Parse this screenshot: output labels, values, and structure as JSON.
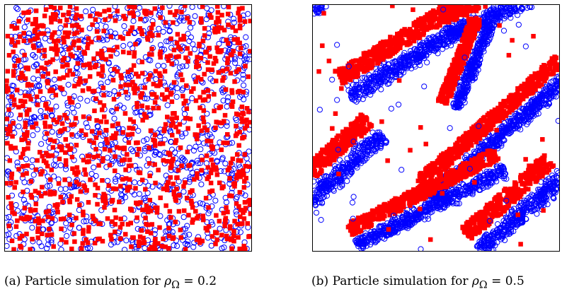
{
  "figure": {
    "captions": [
      {
        "label": "(a)",
        "text": "Particle simulation for",
        "math": "ρ",
        "sub": "Ω",
        "value": "= 0.2"
      },
      {
        "label": "(b)",
        "text": "Particle simulation for",
        "math": "ρ",
        "sub": "Ω",
        "value": "= 0.5"
      }
    ]
  },
  "colors": {
    "species_1": "#ff0000",
    "species_2": "#0000ff",
    "frame": "#000000"
  },
  "chart_data": [
    {
      "type": "scatter",
      "title": "(a) Particle simulation for ρΩ = 0.2",
      "density": 0.2,
      "xlim": [
        0,
        1
      ],
      "ylim": [
        0,
        1
      ],
      "grid": false,
      "series": [
        {
          "marker": "filled-square",
          "color": "#ff0000",
          "distribution": "uniform random",
          "approx_count": 1100
        },
        {
          "marker": "open-circle",
          "color": "#0000ff",
          "distribution": "uniform random",
          "approx_count": 1100
        }
      ]
    },
    {
      "type": "scatter",
      "title": "(b) Particle simulation for ρΩ = 0.5",
      "density": 0.5,
      "xlim": [
        0,
        1
      ],
      "ylim": [
        0,
        1
      ],
      "grid": false,
      "pattern": "diagonal lanes (bottom-left to top-right), blue core with red leading edge",
      "lanes": [
        {
          "from": [
            -0.15,
            0.88
          ],
          "to": [
            0.15,
            1.1
          ],
          "width": 0.11
        },
        {
          "from": [
            0.15,
            0.63
          ],
          "to": [
            0.62,
            0.92
          ],
          "width": 0.12
        },
        {
          "from": [
            0.55,
            0.88
          ],
          "to": [
            0.95,
            1.05
          ],
          "width": 0.1
        },
        {
          "from": [
            0.48,
            0.22
          ],
          "to": [
            1.05,
            0.72
          ],
          "width": 0.1
        },
        {
          "from": [
            0.58,
            0.58
          ],
          "to": [
            0.72,
            0.93
          ],
          "width": 0.08
        },
        {
          "from": [
            -0.02,
            0.2
          ],
          "to": [
            0.28,
            0.47
          ],
          "width": 0.12
        },
        {
          "from": [
            0.18,
            0.02
          ],
          "to": [
            0.78,
            0.33
          ],
          "width": 0.1
        },
        {
          "from": [
            0.68,
            0.0
          ],
          "to": [
            1.02,
            0.3
          ],
          "width": 0.12
        }
      ],
      "series": [
        {
          "marker": "filled-square",
          "color": "#ff0000"
        },
        {
          "marker": "open-circle",
          "color": "#0000ff"
        }
      ]
    }
  ]
}
